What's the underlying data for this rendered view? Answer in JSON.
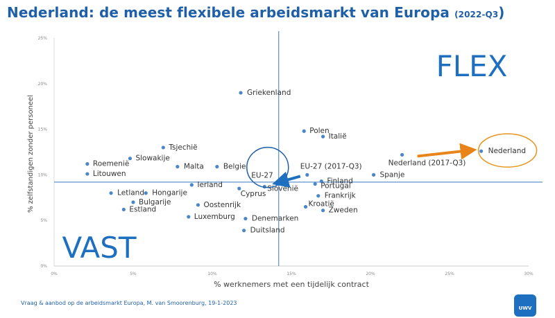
{
  "header": {
    "title_main": "Nederland: de meest flexibele arbeidsmarkt van Europa",
    "title_period": "(2022-Q3",
    "title_close": ")"
  },
  "footer": {
    "source": "Vraag & aanbod op de arbeidsmarkt Europa, M. van Smoorenburg, 19-1-2023"
  },
  "logo": {
    "text": "UWV"
  },
  "chart_data": {
    "type": "scatter",
    "xlabel": "% werknemers met een tijdelijk contract",
    "ylabel": "% zelfstandigen zonder personeel",
    "xlim": [
      0,
      30
    ],
    "ylim": [
      0,
      25
    ],
    "x_ticks": [
      "0%",
      "5%",
      "10%",
      "15%",
      "20%",
      "25%",
      "30%"
    ],
    "y_ticks": [
      "0%",
      "5%",
      "10%",
      "15%",
      "20%",
      "25%"
    ],
    "reference_lines": {
      "x": 14.2,
      "y": 9.2
    },
    "quadrant_labels": {
      "top_right": "FLEX",
      "bottom_left": "VAST"
    },
    "point_color": "#4a86c8",
    "points": [
      {
        "label": "Griekenland",
        "x": 11.8,
        "y": 19.0
      },
      {
        "label": "Polen",
        "x": 15.8,
        "y": 14.8
      },
      {
        "label": "Italië",
        "x": 17.0,
        "y": 14.2
      },
      {
        "label": "Tsjechië",
        "x": 6.9,
        "y": 13.0
      },
      {
        "label": "Slowakije",
        "x": 4.8,
        "y": 11.8
      },
      {
        "label": "Roemenië",
        "x": 2.1,
        "y": 11.2
      },
      {
        "label": "Malta",
        "x": 7.8,
        "y": 10.9
      },
      {
        "label": "Belgie",
        "x": 10.3,
        "y": 10.9
      },
      {
        "label": "Litouwen",
        "x": 2.1,
        "y": 10.1
      },
      {
        "label": "EU-27",
        "x": 14.2,
        "y": 9.3
      },
      {
        "label": "EU-27 (2017-Q3)",
        "x": 16.0,
        "y": 10.0
      },
      {
        "label": "Nederland (2017-Q3)",
        "x": 22.0,
        "y": 12.2
      },
      {
        "label": "Nederland",
        "x": 27.0,
        "y": 12.6
      },
      {
        "label": "Spanje",
        "x": 20.2,
        "y": 10.0
      },
      {
        "label": "Finland",
        "x": 16.9,
        "y": 9.3
      },
      {
        "label": "Portugal",
        "x": 16.5,
        "y": 9.0
      },
      {
        "label": "Slovenië",
        "x": 13.3,
        "y": 8.7
      },
      {
        "label": "Cyprus",
        "x": 11.7,
        "y": 8.5
      },
      {
        "label": "Ierland",
        "x": 8.7,
        "y": 8.9
      },
      {
        "label": "Letland",
        "x": 3.6,
        "y": 8.0
      },
      {
        "label": "Hongarije",
        "x": 5.8,
        "y": 8.0
      },
      {
        "label": "Frankrijk",
        "x": 16.7,
        "y": 7.7
      },
      {
        "label": "Bulgarije",
        "x": 5.0,
        "y": 7.0
      },
      {
        "label": "Oostenrijk",
        "x": 9.1,
        "y": 6.7
      },
      {
        "label": "Kroatië",
        "x": 15.9,
        "y": 6.5
      },
      {
        "label": "Zweden",
        "x": 17.0,
        "y": 6.1
      },
      {
        "label": "Estland",
        "x": 4.4,
        "y": 6.2
      },
      {
        "label": "Luxemburg",
        "x": 8.5,
        "y": 5.4
      },
      {
        "label": "Denemarken",
        "x": 12.1,
        "y": 5.2
      },
      {
        "label": "Duitsland",
        "x": 12.0,
        "y": 3.9
      }
    ],
    "highlight": {
      "arrow": {
        "from": "Nederland (2017-Q3)",
        "to": "Nederland",
        "color": "#e8841a"
      },
      "circles": [
        {
          "around": "Nederland",
          "color": "#e8941a"
        },
        {
          "around": "EU-27",
          "color": "#1f5fa8"
        }
      ],
      "eu_arrow_color": "#1f6fc0"
    }
  }
}
